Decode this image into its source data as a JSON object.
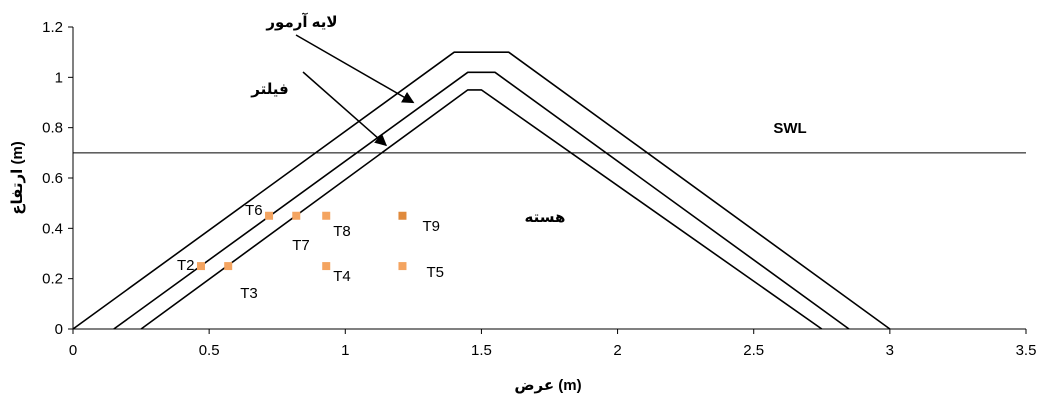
{
  "chart_data": {
    "type": "line",
    "xlabel": "عرض (m)",
    "ylabel": "ارتفاع (m)",
    "xlim": [
      0,
      3.5
    ],
    "ylim": [
      0,
      1.2
    ],
    "x_ticks": [
      0,
      0.5,
      1,
      1.5,
      2,
      2.5,
      3,
      3.5
    ],
    "x_tick_labels": [
      "0",
      "0.5",
      "1",
      "1.5",
      "2",
      "2.5",
      "3",
      "3.5"
    ],
    "y_ticks": [
      0,
      0.2,
      0.4,
      0.6,
      0.8,
      1.0,
      1.2
    ],
    "y_tick_labels": [
      "0",
      "0.2",
      "0.4",
      "0.6",
      "0.8",
      "1",
      "1.2"
    ],
    "grid": false,
    "swl": {
      "label": "SWL",
      "y": 0.7
    },
    "series": [
      {
        "points": [
          [
            0,
            0
          ],
          [
            1.4,
            1.1
          ],
          [
            1.6,
            1.1
          ],
          [
            3.0,
            0
          ]
        ],
        "color": "#000000"
      },
      {
        "points": [
          [
            0.15,
            0
          ],
          [
            1.45,
            1.02
          ],
          [
            1.55,
            1.02
          ],
          [
            2.85,
            0
          ]
        ],
        "color": "#000000"
      },
      {
        "points": [
          [
            0.25,
            0
          ],
          [
            1.45,
            0.95
          ],
          [
            1.5,
            0.95
          ],
          [
            2.75,
            0
          ]
        ],
        "color": "#000000"
      }
    ],
    "points": [
      {
        "label": "T2",
        "x": 0.47,
        "y": 0.25,
        "color": "#F4A460"
      },
      {
        "label": "T3",
        "x": 0.57,
        "y": 0.25,
        "color": "#F4A460"
      },
      {
        "label": "T6",
        "x": 0.72,
        "y": 0.45,
        "color": "#F4A460"
      },
      {
        "label": "T7",
        "x": 0.82,
        "y": 0.45,
        "color": "#F4A460"
      },
      {
        "label": "T8",
        "x": 0.93,
        "y": 0.45,
        "color": "#F4A460"
      },
      {
        "label": "T4",
        "x": 0.93,
        "y": 0.25,
        "color": "#F4A460"
      },
      {
        "label": "T9",
        "x": 1.21,
        "y": 0.45,
        "color": "#E08A3C"
      },
      {
        "label": "T5",
        "x": 1.21,
        "y": 0.25,
        "color": "#F4A460"
      }
    ],
    "annotations": [
      {
        "text": "لایه آرمور",
        "target": [
          1.25,
          0.9
        ]
      },
      {
        "text": "فیلتر",
        "target": [
          1.15,
          0.73
        ]
      },
      {
        "text": "هسته"
      }
    ]
  }
}
